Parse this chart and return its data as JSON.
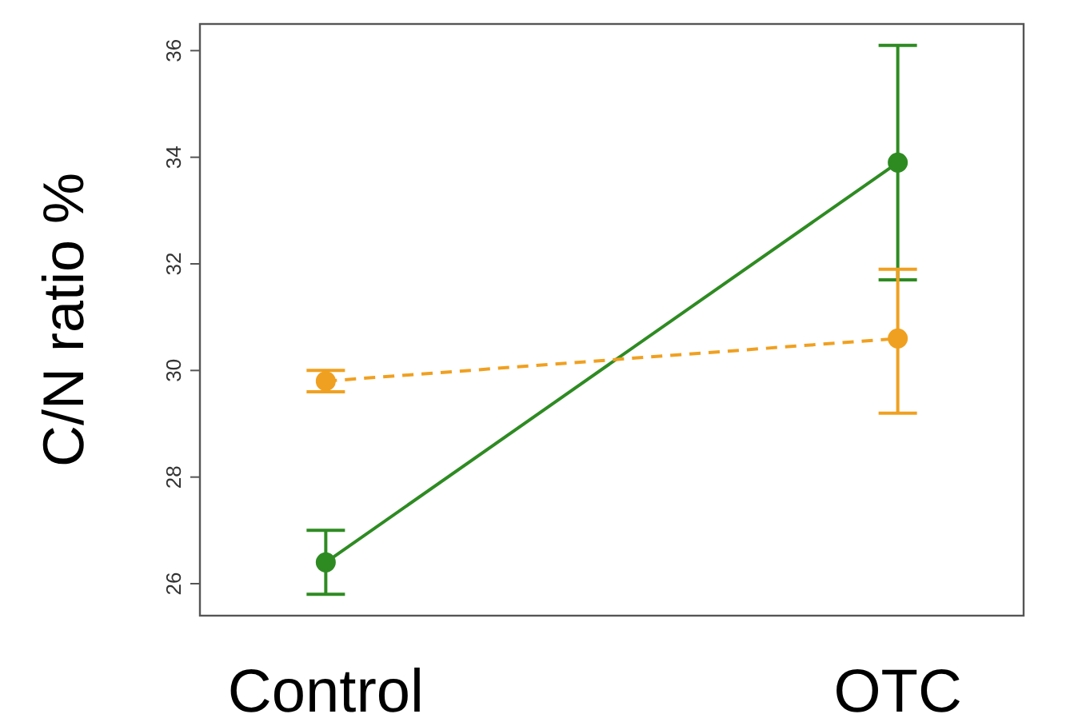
{
  "chart_data": {
    "type": "line",
    "ylabel": "C/N ratio  %",
    "categories": [
      "Control",
      "OTC"
    ],
    "ylim": [
      25.4,
      36.5
    ],
    "yticks": [
      26,
      28,
      30,
      32,
      34,
      36
    ],
    "marker": "circle",
    "grid": false,
    "series": [
      {
        "color": "#2e8b22",
        "values": [
          26.4,
          33.9
        ],
        "errors": [
          [
            25.8,
            27.0
          ],
          [
            31.7,
            36.1
          ]
        ],
        "line_style": "solid"
      },
      {
        "color": "#f0a020",
        "values": [
          29.8,
          30.6
        ],
        "errors": [
          [
            29.6,
            30.0
          ],
          [
            29.2,
            31.9
          ]
        ],
        "line_style": "dashed"
      }
    ]
  }
}
